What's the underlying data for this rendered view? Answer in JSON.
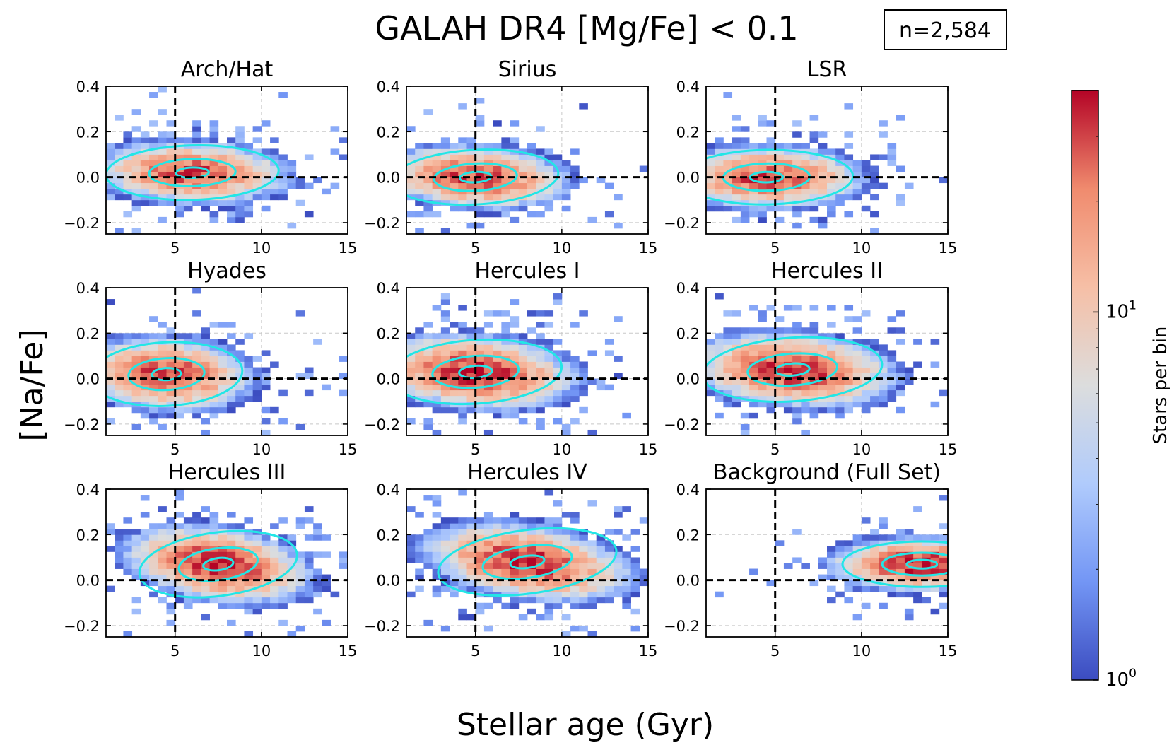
{
  "title": "GALAH DR4 [Mg/Fe] < 0.1",
  "count_label": "n=2,584",
  "chart_data": {
    "type": "heatmap",
    "subtype": "2D histogram small multiples with density contours",
    "xlabel": "Stellar age (Gyr)",
    "ylabel": "[Na/Fe]",
    "xlim": [
      1,
      15
    ],
    "ylim": [
      -0.25,
      0.4
    ],
    "xticks": [
      5,
      10,
      15
    ],
    "yticks": [
      -0.2,
      0.0,
      0.2,
      0.4
    ],
    "ytick_labels": [
      "−0.2",
      "0.0",
      "0.2",
      "0.4"
    ],
    "reference_lines": {
      "x": 5,
      "y": 0.0
    },
    "grid": true,
    "bin_size": {
      "age_gyr": 0.5,
      "nafe_dex": 0.025
    },
    "colorbar": {
      "label": "Stars per bin",
      "scale": "log",
      "range": [
        1,
        40
      ],
      "tick_values": [
        1,
        10
      ],
      "tick_labels": [
        {
          "base": "10",
          "exp": "0"
        },
        {
          "base": "10",
          "exp": "1"
        }
      ],
      "colormap": "coolwarm",
      "colors": [
        "#3b4cc0",
        "#7396f5",
        "#b0cbfc",
        "#dcdddd",
        "#f6bfa6",
        "#f08b6e",
        "#b40426"
      ]
    },
    "contour_color": "#22e6e6",
    "panels": [
      {
        "name": "Arch/Hat",
        "peak": {
          "age": 6.0,
          "nafe": 0.02
        },
        "spread": {
          "age": 2.5,
          "nafe": 0.06
        },
        "tilt": -0.002,
        "total_stars": 240
      },
      {
        "name": "Sirius",
        "peak": {
          "age": 5.0,
          "nafe": 0.0
        },
        "spread": {
          "age": 2.4,
          "nafe": 0.06
        },
        "tilt": -0.004,
        "total_stars": 260
      },
      {
        "name": "LSR",
        "peak": {
          "age": 4.5,
          "nafe": 0.0
        },
        "spread": {
          "age": 2.5,
          "nafe": 0.06
        },
        "tilt": -0.001,
        "total_stars": 250
      },
      {
        "name": "Hyades",
        "peak": {
          "age": 4.5,
          "nafe": 0.02
        },
        "spread": {
          "age": 2.2,
          "nafe": 0.07
        },
        "tilt": -0.004,
        "total_stars": 260
      },
      {
        "name": "Hercules I",
        "peak": {
          "age": 5.0,
          "nafe": 0.03
        },
        "spread": {
          "age": 2.5,
          "nafe": 0.07
        },
        "tilt": -0.005,
        "total_stars": 320
      },
      {
        "name": "Hercules II",
        "peak": {
          "age": 6.0,
          "nafe": 0.04
        },
        "spread": {
          "age": 2.6,
          "nafe": 0.07
        },
        "tilt": -0.005,
        "total_stars": 300
      },
      {
        "name": "Hercules III",
        "peak": {
          "age": 7.5,
          "nafe": 0.07
        },
        "spread": {
          "age": 2.3,
          "nafe": 0.07
        },
        "tilt": -0.01,
        "total_stars": 330
      },
      {
        "name": "Hercules IV",
        "peak": {
          "age": 8.0,
          "nafe": 0.08
        },
        "spread": {
          "age": 2.6,
          "nafe": 0.07
        },
        "tilt": -0.01,
        "total_stars": 300
      },
      {
        "name": "Background (Full Set)",
        "peak": {
          "age": 13.5,
          "nafe": 0.07
        },
        "spread": {
          "age": 2.3,
          "nafe": 0.05
        },
        "tilt": 0.0,
        "total_stars": 360
      }
    ]
  }
}
